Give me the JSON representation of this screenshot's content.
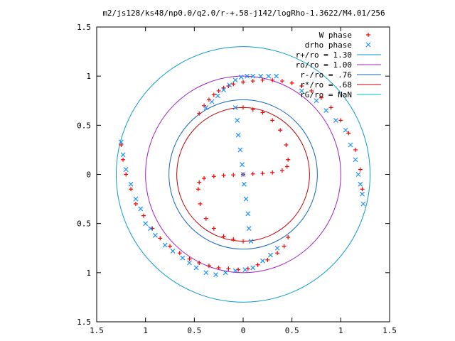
{
  "chart_data": {
    "type": "scatter",
    "title": "m2/js128/ks48/np0.0/q2.0/r-+.58-j142/logRho-1.3622/M4.01/256",
    "xlim": [
      -1.5,
      1.5
    ],
    "ylim": [
      -1.5,
      1.5
    ],
    "x_ticks": [
      -1.5,
      -1,
      -0.5,
      0,
      0.5,
      1,
      1.5
    ],
    "y_ticks": [
      -1.5,
      -1,
      -0.5,
      0,
      0.5,
      1,
      1.5
    ],
    "x_tick_labels": [
      "1.5",
      "1",
      "0.5",
      "0",
      "0.5",
      "1",
      "1.5"
    ],
    "y_tick_labels": [
      "1.5",
      "1",
      "0.5",
      "0",
      "0.5",
      "1",
      "1.5"
    ],
    "xlabel": "",
    "ylabel": "",
    "grid": false,
    "legend_position": "top-right",
    "legend": [
      {
        "label": "W phase",
        "marker": "plus",
        "color": "#ff0000"
      },
      {
        "label": "drho phase",
        "marker": "cross",
        "color": "#1e90ff"
      },
      {
        "label": "r+/ro = 1.30",
        "marker": "line",
        "color": "#0c9ccc"
      },
      {
        "label": "ro/ro = 1.00",
        "marker": "line",
        "color": "#a020c0"
      },
      {
        "label": "r-/ro = .76",
        "marker": "line",
        "color": "#1565c0"
      },
      {
        "label": "r*/ro = .68",
        "marker": "line",
        "color": "#c00000"
      },
      {
        "label": "rG/ro = NaN",
        "marker": "line",
        "color": "#00c0c0"
      }
    ],
    "circles": [
      {
        "label": "r+/ro = 1.30",
        "radius": 1.3,
        "color": "#0c9ccc"
      },
      {
        "label": "ro/ro = 1.00",
        "radius": 1.0,
        "color": "#a020c0"
      },
      {
        "label": "r-/ro = .76",
        "radius": 0.76,
        "color": "#1565c0"
      },
      {
        "label": "r*/ro = .68",
        "radius": 0.68,
        "color": "#c00000"
      }
    ],
    "series": [
      {
        "name": "W phase",
        "marker": "plus",
        "color": "#ff0000",
        "points": [
          [
            -0.45,
            0.62
          ],
          [
            -0.4,
            0.7
          ],
          [
            -0.35,
            0.76
          ],
          [
            -0.3,
            0.81
          ],
          [
            -0.25,
            0.85
          ],
          [
            -0.2,
            0.88
          ],
          [
            -0.15,
            0.9
          ],
          [
            -0.1,
            0.92
          ],
          [
            0,
            0.94
          ],
          [
            0.1,
            0.95
          ],
          [
            0.2,
            0.96
          ],
          [
            0.3,
            0.96
          ],
          [
            0.4,
            0.95
          ],
          [
            0.5,
            0.93
          ],
          [
            0.6,
            0.9
          ],
          [
            0.7,
            0.85
          ],
          [
            0.8,
            0.78
          ],
          [
            0.9,
            0.68
          ],
          [
            1.0,
            0.55
          ],
          [
            1.08,
            0.42
          ],
          [
            1.15,
            0.25
          ],
          [
            1.2,
            0.05
          ],
          [
            1.22,
            -0.15
          ],
          [
            -1.25,
            0.3
          ],
          [
            -1.23,
            0.15
          ],
          [
            -1.2,
            0.0
          ],
          [
            -1.15,
            -0.15
          ],
          [
            -1.1,
            -0.3
          ],
          [
            -1.02,
            -0.42
          ],
          [
            -0.93,
            -0.55
          ],
          [
            -0.85,
            -0.65
          ],
          [
            -0.75,
            -0.73
          ],
          [
            -0.65,
            -0.8
          ],
          [
            -0.55,
            -0.86
          ],
          [
            -0.45,
            -0.9
          ],
          [
            -0.35,
            -0.93
          ],
          [
            -0.25,
            -0.95
          ],
          [
            -0.15,
            -0.96
          ],
          [
            -0.05,
            -0.97
          ],
          [
            0.05,
            -0.96
          ],
          [
            0.15,
            -0.92
          ],
          [
            0.25,
            -0.87
          ],
          [
            0.35,
            -0.8
          ],
          [
            0.42,
            -0.73
          ],
          [
            0.46,
            -0.64
          ],
          [
            0.0,
            0.68
          ],
          [
            0.1,
            0.66
          ],
          [
            0.2,
            0.63
          ],
          [
            0.3,
            0.55
          ],
          [
            0.38,
            0.45
          ],
          [
            0.44,
            0.3
          ],
          [
            0.46,
            0.15
          ],
          [
            0.45,
            0.08
          ],
          [
            0.4,
            0.04
          ],
          [
            0.3,
            0.02
          ],
          [
            0.2,
            0.01
          ],
          [
            0.1,
            0.005
          ],
          [
            0.0,
            0.0
          ],
          [
            -0.1,
            -0.005
          ],
          [
            -0.2,
            -0.01
          ],
          [
            -0.3,
            -0.02
          ],
          [
            -0.4,
            -0.04
          ],
          [
            -0.45,
            -0.08
          ],
          [
            -0.46,
            -0.15
          ],
          [
            -0.44,
            -0.3
          ],
          [
            -0.38,
            -0.45
          ],
          [
            -0.3,
            -0.55
          ],
          [
            -0.2,
            -0.63
          ],
          [
            -0.1,
            -0.66
          ],
          [
            0.0,
            -0.68
          ]
        ]
      },
      {
        "name": "drho phase",
        "marker": "cross",
        "color": "#1e90ff",
        "points": [
          [
            -0.38,
            0.68
          ],
          [
            -0.32,
            0.74
          ],
          [
            -0.26,
            0.8
          ],
          [
            -0.2,
            0.86
          ],
          [
            -0.14,
            0.91
          ],
          [
            -0.08,
            0.96
          ],
          [
            -0.02,
            0.99
          ],
          [
            0.04,
            1.0
          ],
          [
            0.1,
            1.0
          ],
          [
            0.18,
            1.0
          ],
          [
            0.26,
            1.0
          ],
          [
            0.34,
            1.0
          ],
          [
            0.6,
            0.85
          ],
          [
            0.75,
            0.75
          ],
          [
            0.85,
            0.65
          ],
          [
            0.95,
            0.55
          ],
          [
            1.05,
            0.45
          ],
          [
            1.1,
            0.3
          ],
          [
            1.15,
            0.15
          ],
          [
            1.18,
            0.0
          ],
          [
            1.2,
            -0.1
          ],
          [
            1.22,
            -0.2
          ],
          [
            1.23,
            -0.3
          ],
          [
            -1.25,
            0.33
          ],
          [
            -1.23,
            0.2
          ],
          [
            -1.2,
            0.05
          ],
          [
            -1.15,
            -0.1
          ],
          [
            -1.1,
            -0.25
          ],
          [
            -1.05,
            -0.35
          ],
          [
            -1.0,
            -0.5
          ],
          [
            -0.95,
            -0.55
          ],
          [
            -0.9,
            -0.62
          ],
          [
            -0.8,
            -0.72
          ],
          [
            -0.72,
            -0.78
          ],
          [
            -0.62,
            -0.85
          ],
          [
            -0.55,
            -0.9
          ],
          [
            -0.48,
            -0.95
          ],
          [
            -0.38,
            -1.0
          ],
          [
            -0.28,
            -1.02
          ],
          [
            -0.18,
            -1.0
          ],
          [
            -0.08,
            -0.98
          ],
          [
            0.02,
            -0.97
          ],
          [
            0.1,
            -0.95
          ],
          [
            0.2,
            -0.88
          ],
          [
            0.28,
            -0.82
          ],
          [
            0.35,
            -0.75
          ],
          [
            -0.08,
            0.68
          ],
          [
            -0.06,
            0.55
          ],
          [
            -0.05,
            0.4
          ],
          [
            -0.03,
            0.25
          ],
          [
            -0.01,
            0.1
          ],
          [
            0.0,
            0.0
          ],
          [
            0.01,
            -0.1
          ],
          [
            0.03,
            -0.25
          ],
          [
            0.05,
            -0.4
          ],
          [
            0.06,
            -0.55
          ],
          [
            0.08,
            -0.68
          ]
        ]
      }
    ]
  }
}
